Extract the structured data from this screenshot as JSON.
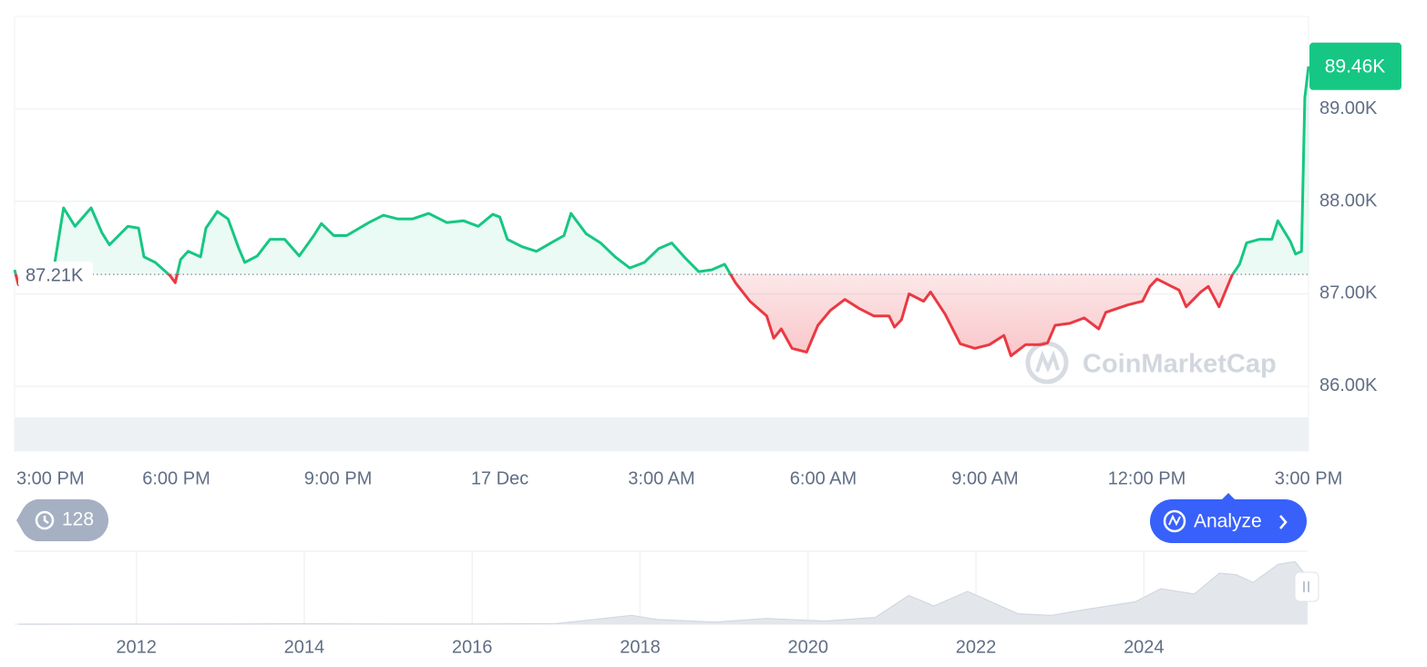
{
  "chart_data": [
    {
      "type": "line",
      "x": [
        0,
        0.07,
        0.74,
        0.91,
        1.12,
        1.42,
        1.62,
        1.76,
        2.1,
        2.3,
        2.4,
        2.61,
        2.88,
        2.98,
        3.08,
        3.22,
        3.45,
        3.55,
        3.76,
        3.96,
        4.16,
        4.27,
        4.5,
        4.74,
        5.01,
        5.28,
        5.55,
        5.69,
        5.92,
        6.16,
        6.57,
        6.84,
        7.11,
        7.38,
        7.68,
        8.02,
        8.33,
        8.6,
        8.87,
        9.0,
        9.14,
        9.41,
        9.68,
        9.95,
        10.19,
        10.32,
        10.6,
        10.87,
        11.14,
        11.41,
        11.68,
        11.95,
        12.19,
        12.42,
        12.69,
        12.93,
        13.17,
        13.37,
        13.64,
        13.95,
        14.08,
        14.22,
        14.42,
        14.69,
        14.9,
        15.13,
        15.4,
        15.67,
        15.94,
        16.22,
        16.32,
        16.45,
        16.59,
        16.86,
        16.99,
        17.26,
        17.54,
        17.81,
        18.08,
        18.35,
        18.48,
        18.75,
        19.03,
        19.16,
        19.3,
        19.57,
        19.84,
        20.11,
        20.24,
        20.65,
        20.92,
        21.06,
        21.19,
        21.46,
        21.6,
        21.73,
        22.0,
        22.14,
        22.34,
        22.58,
        22.72,
        22.85,
        23.09,
        23.32,
        23.43,
        23.66,
        23.76,
        23.87,
        23.93,
        24
      ],
      "values": [
        87.26,
        87.1,
        87.32,
        87.93,
        87.73,
        87.93,
        87.66,
        87.53,
        87.73,
        87.71,
        87.4,
        87.34,
        87.2,
        87.12,
        87.37,
        87.46,
        87.4,
        87.71,
        87.89,
        87.81,
        87.49,
        87.34,
        87.41,
        87.59,
        87.59,
        87.41,
        87.63,
        87.76,
        87.63,
        87.63,
        87.77,
        87.85,
        87.81,
        87.81,
        87.87,
        87.77,
        87.79,
        87.73,
        87.86,
        87.83,
        87.59,
        87.51,
        87.46,
        87.55,
        87.63,
        87.87,
        87.65,
        87.55,
        87.4,
        87.28,
        87.34,
        87.49,
        87.55,
        87.4,
        87.24,
        87.26,
        87.32,
        87.12,
        86.92,
        86.76,
        86.52,
        86.62,
        86.41,
        86.37,
        86.66,
        86.82,
        86.94,
        86.84,
        86.76,
        86.76,
        86.64,
        86.72,
        87.0,
        86.92,
        87.02,
        86.78,
        86.46,
        86.41,
        86.45,
        86.55,
        86.33,
        86.45,
        86.45,
        86.47,
        86.66,
        86.68,
        86.74,
        86.62,
        86.8,
        86.88,
        86.92,
        87.08,
        87.16,
        87.08,
        87.04,
        86.86,
        87.02,
        87.08,
        86.86,
        87.2,
        87.32,
        87.55,
        87.59,
        87.59,
        87.79,
        87.57,
        87.43,
        87.46,
        89.12,
        89.46
      ],
      "xlim": [
        0,
        24
      ],
      "ylim": [
        85.3,
        90.0
      ],
      "xticks": [
        {
          "value": 0,
          "label": "3:00 PM"
        },
        {
          "value": 3,
          "label": "6:00 PM"
        },
        {
          "value": 6,
          "label": "9:00 PM"
        },
        {
          "value": 9,
          "label": "17 Dec"
        },
        {
          "value": 12,
          "label": "3:00 AM"
        },
        {
          "value": 15,
          "label": "6:00 AM"
        },
        {
          "value": 18,
          "label": "9:00 AM"
        },
        {
          "value": 21,
          "label": "12:00 PM"
        },
        {
          "value": 24,
          "label": "3:00 PM"
        }
      ],
      "yticks": [
        {
          "value": 86,
          "label": "86.00K"
        },
        {
          "value": 87,
          "label": "87.00K"
        },
        {
          "value": 88,
          "label": "88.00K"
        },
        {
          "value": 89,
          "label": "89.00K"
        }
      ],
      "grid": true,
      "baseline": {
        "value": 87.21,
        "label": "87.21K"
      },
      "last_price": {
        "value": 89.46,
        "label": "89.46K"
      },
      "up_color": "#16c784",
      "down_color": "#ea3943"
    },
    {
      "type": "area",
      "x": [
        2010.6,
        2013.0,
        2013.9,
        2015.0,
        2016.0,
        2017.0,
        2017.9,
        2018.2,
        2018.9,
        2019.5,
        2020.2,
        2020.8,
        2021.2,
        2021.5,
        2021.9,
        2022.5,
        2022.9,
        2023.3,
        2023.9,
        2024.2,
        2024.6,
        2024.9,
        2025.1,
        2025.3,
        2025.6,
        2025.8,
        2025.95
      ],
      "values": [
        0,
        0.1,
        0.8,
        0.3,
        0.4,
        1,
        17,
        9,
        4,
        11,
        6,
        13,
        55,
        35,
        63,
        20,
        17,
        28,
        43,
        68,
        58,
        98,
        95,
        80,
        115,
        120,
        90
      ],
      "xlim": [
        2010.55,
        2025.95
      ],
      "ylim": [
        0,
        140
      ],
      "xticks": [
        2012,
        2014,
        2016,
        2018,
        2020,
        2022,
        2024
      ],
      "color": "#e3e7ec"
    }
  ],
  "history_count": 128,
  "analyze_button": "Analyze",
  "watermark": "CoinMarketCap"
}
